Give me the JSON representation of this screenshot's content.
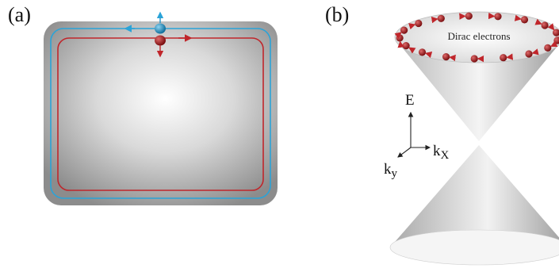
{
  "panel_a": {
    "label": "(a)",
    "colors": {
      "outer_edge": "#2aa3d8",
      "inner_edge": "#c0262b",
      "spin_up": "#1f8fc4",
      "spin_down": "#b3181d"
    }
  },
  "panel_b": {
    "label": "(b)",
    "cone_caption": "Dirac electrons",
    "axes": {
      "energy": "E",
      "kx": "k",
      "kx_sub": "X",
      "ky": "k",
      "ky_sub": "y"
    }
  }
}
